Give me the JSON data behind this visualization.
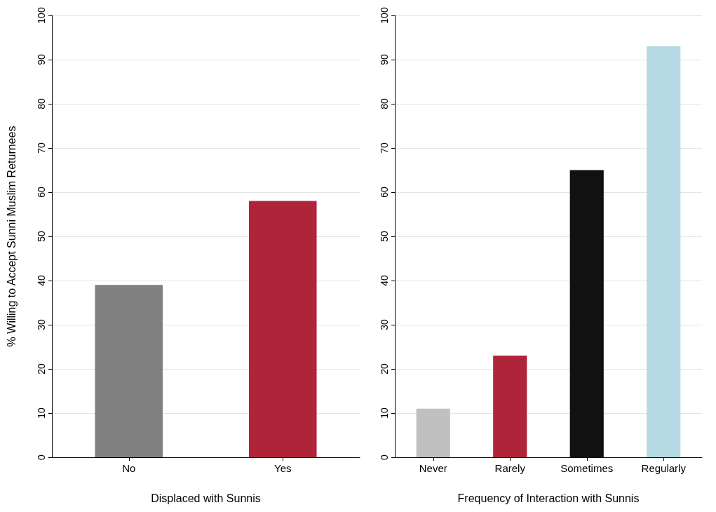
{
  "chart_data": [
    {
      "type": "bar",
      "xlabel": "Displaced with Sunnis",
      "ylabel": "% Willing to Accept Sunni Muslim Returnees",
      "categories": [
        "No",
        "Yes"
      ],
      "values": [
        39,
        58
      ],
      "colors": [
        "#808080",
        "#b0243a"
      ],
      "ylim": [
        0,
        100
      ],
      "yticks": [
        0,
        10,
        20,
        30,
        40,
        50,
        60,
        70,
        80,
        90,
        100
      ],
      "grid": "y"
    },
    {
      "type": "bar",
      "xlabel": "Frequency of Interaction with Sunnis",
      "categories": [
        "Never",
        "Rarely",
        "Sometimes",
        "Regularly"
      ],
      "values": [
        11,
        23,
        65,
        93
      ],
      "colors": [
        "#c0c0c0",
        "#b0243a",
        "#111111",
        "#b5d9e3"
      ],
      "ylim": [
        0,
        100
      ],
      "yticks": [
        0,
        10,
        20,
        30,
        40,
        50,
        60,
        70,
        80,
        90,
        100
      ],
      "grid": "y"
    }
  ]
}
